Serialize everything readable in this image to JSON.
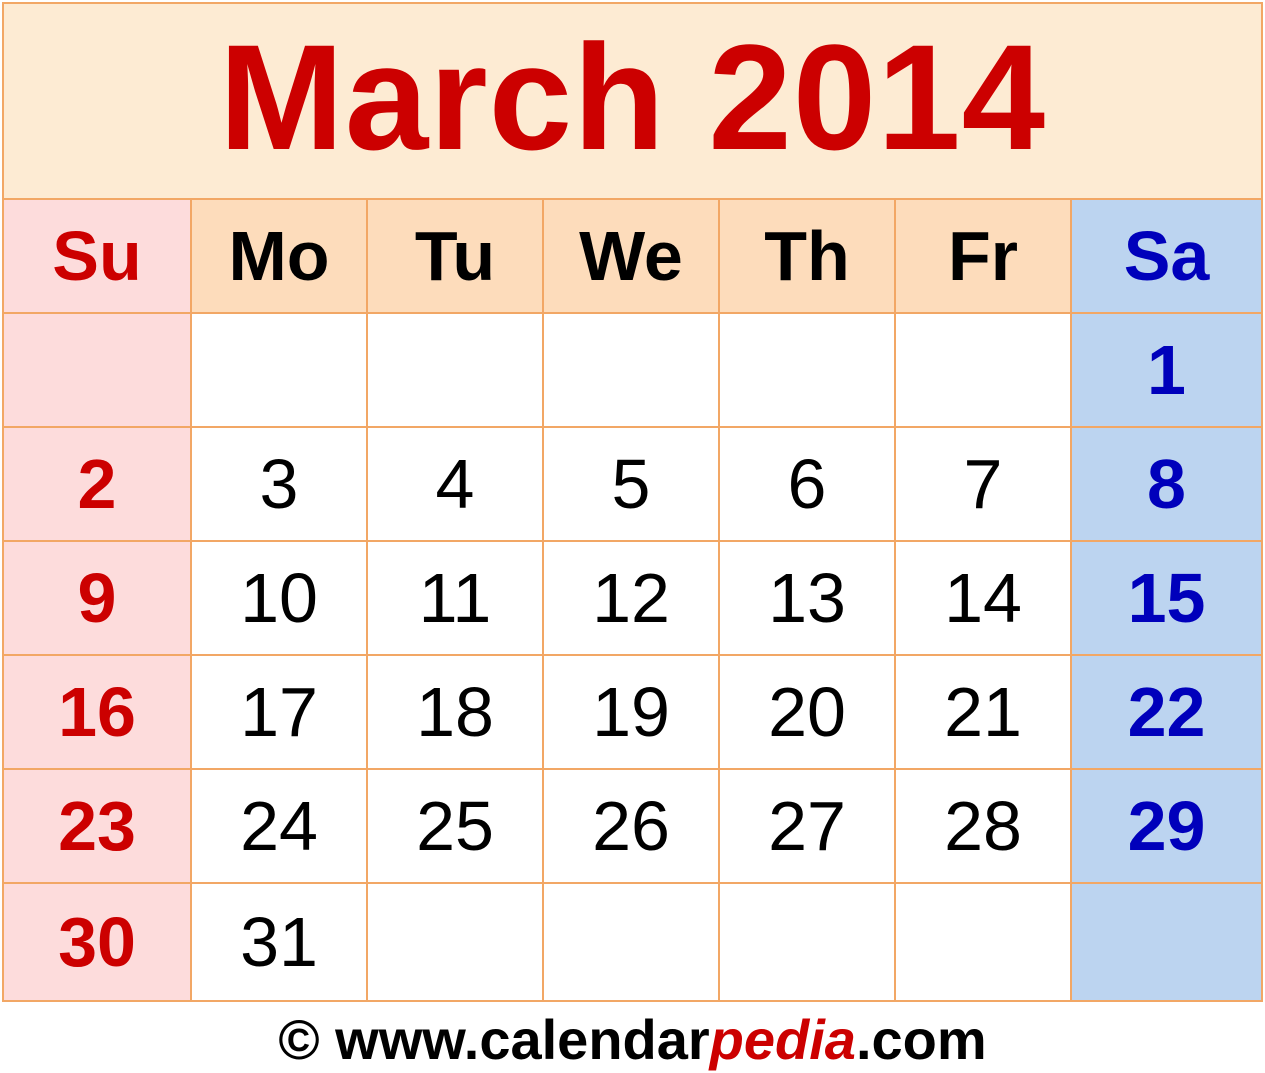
{
  "title": "March 2014",
  "weekdays": [
    "Su",
    "Mo",
    "Tu",
    "We",
    "Th",
    "Fr",
    "Sa"
  ],
  "weeks": [
    [
      "",
      "",
      "",
      "",
      "",
      "",
      "1"
    ],
    [
      "2",
      "3",
      "4",
      "5",
      "6",
      "7",
      "8"
    ],
    [
      "9",
      "10",
      "11",
      "12",
      "13",
      "14",
      "15"
    ],
    [
      "16",
      "17",
      "18",
      "19",
      "20",
      "21",
      "22"
    ],
    [
      "23",
      "24",
      "25",
      "26",
      "27",
      "28",
      "29"
    ],
    [
      "30",
      "31",
      "",
      "",
      "",
      "",
      ""
    ]
  ],
  "footer": {
    "prefix": "© www.calendar",
    "accent": "pedia",
    "suffix": ".com"
  },
  "colors": {
    "title": "#cc0000",
    "sunday": "#cc0000",
    "saturday": "#0000bb",
    "border": "#f2a765",
    "title_background": "#fdebd3",
    "weekday_background": "#fddcbb",
    "sunday_background": "#fddcdc",
    "saturday_background": "#bcd4f0"
  }
}
